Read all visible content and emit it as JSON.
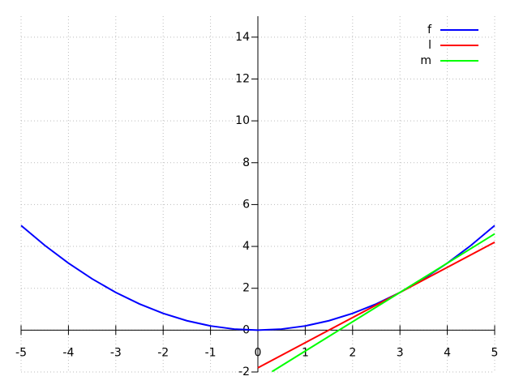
{
  "chart_data": {
    "type": "line",
    "xlim": [
      -5,
      5
    ],
    "ylim": [
      -2,
      15
    ],
    "xticks": [
      -5,
      -4,
      -3,
      -2,
      -1,
      0,
      1,
      2,
      3,
      4,
      5
    ],
    "yticks": [
      -2,
      0,
      2,
      4,
      6,
      8,
      10,
      12,
      14
    ],
    "grid": true,
    "legend": "top-right",
    "series": [
      {
        "name": "f",
        "color": "#0000ff",
        "x": [
          -5,
          -4.5,
          -4,
          -3.5,
          -3,
          -2.5,
          -2,
          -1.5,
          -1,
          -0.5,
          0,
          0.5,
          1,
          1.5,
          2,
          2.5,
          3,
          3.5,
          4,
          4.5,
          5
        ],
        "values": [
          5,
          4.05,
          3.2,
          2.45,
          1.8,
          1.25,
          0.8,
          0.45,
          0.2,
          0.05,
          0,
          0.05,
          0.2,
          0.45,
          0.8,
          1.25,
          1.8,
          2.45,
          3.2,
          4.05,
          5
        ]
      },
      {
        "name": "l",
        "color": "#ff0000",
        "x": [
          0,
          5
        ],
        "values": [
          -1.8,
          4.2
        ]
      },
      {
        "name": "m",
        "color": "#00ff00",
        "x": [
          0.3,
          5
        ],
        "values": [
          -1.98,
          4.6
        ]
      }
    ]
  }
}
